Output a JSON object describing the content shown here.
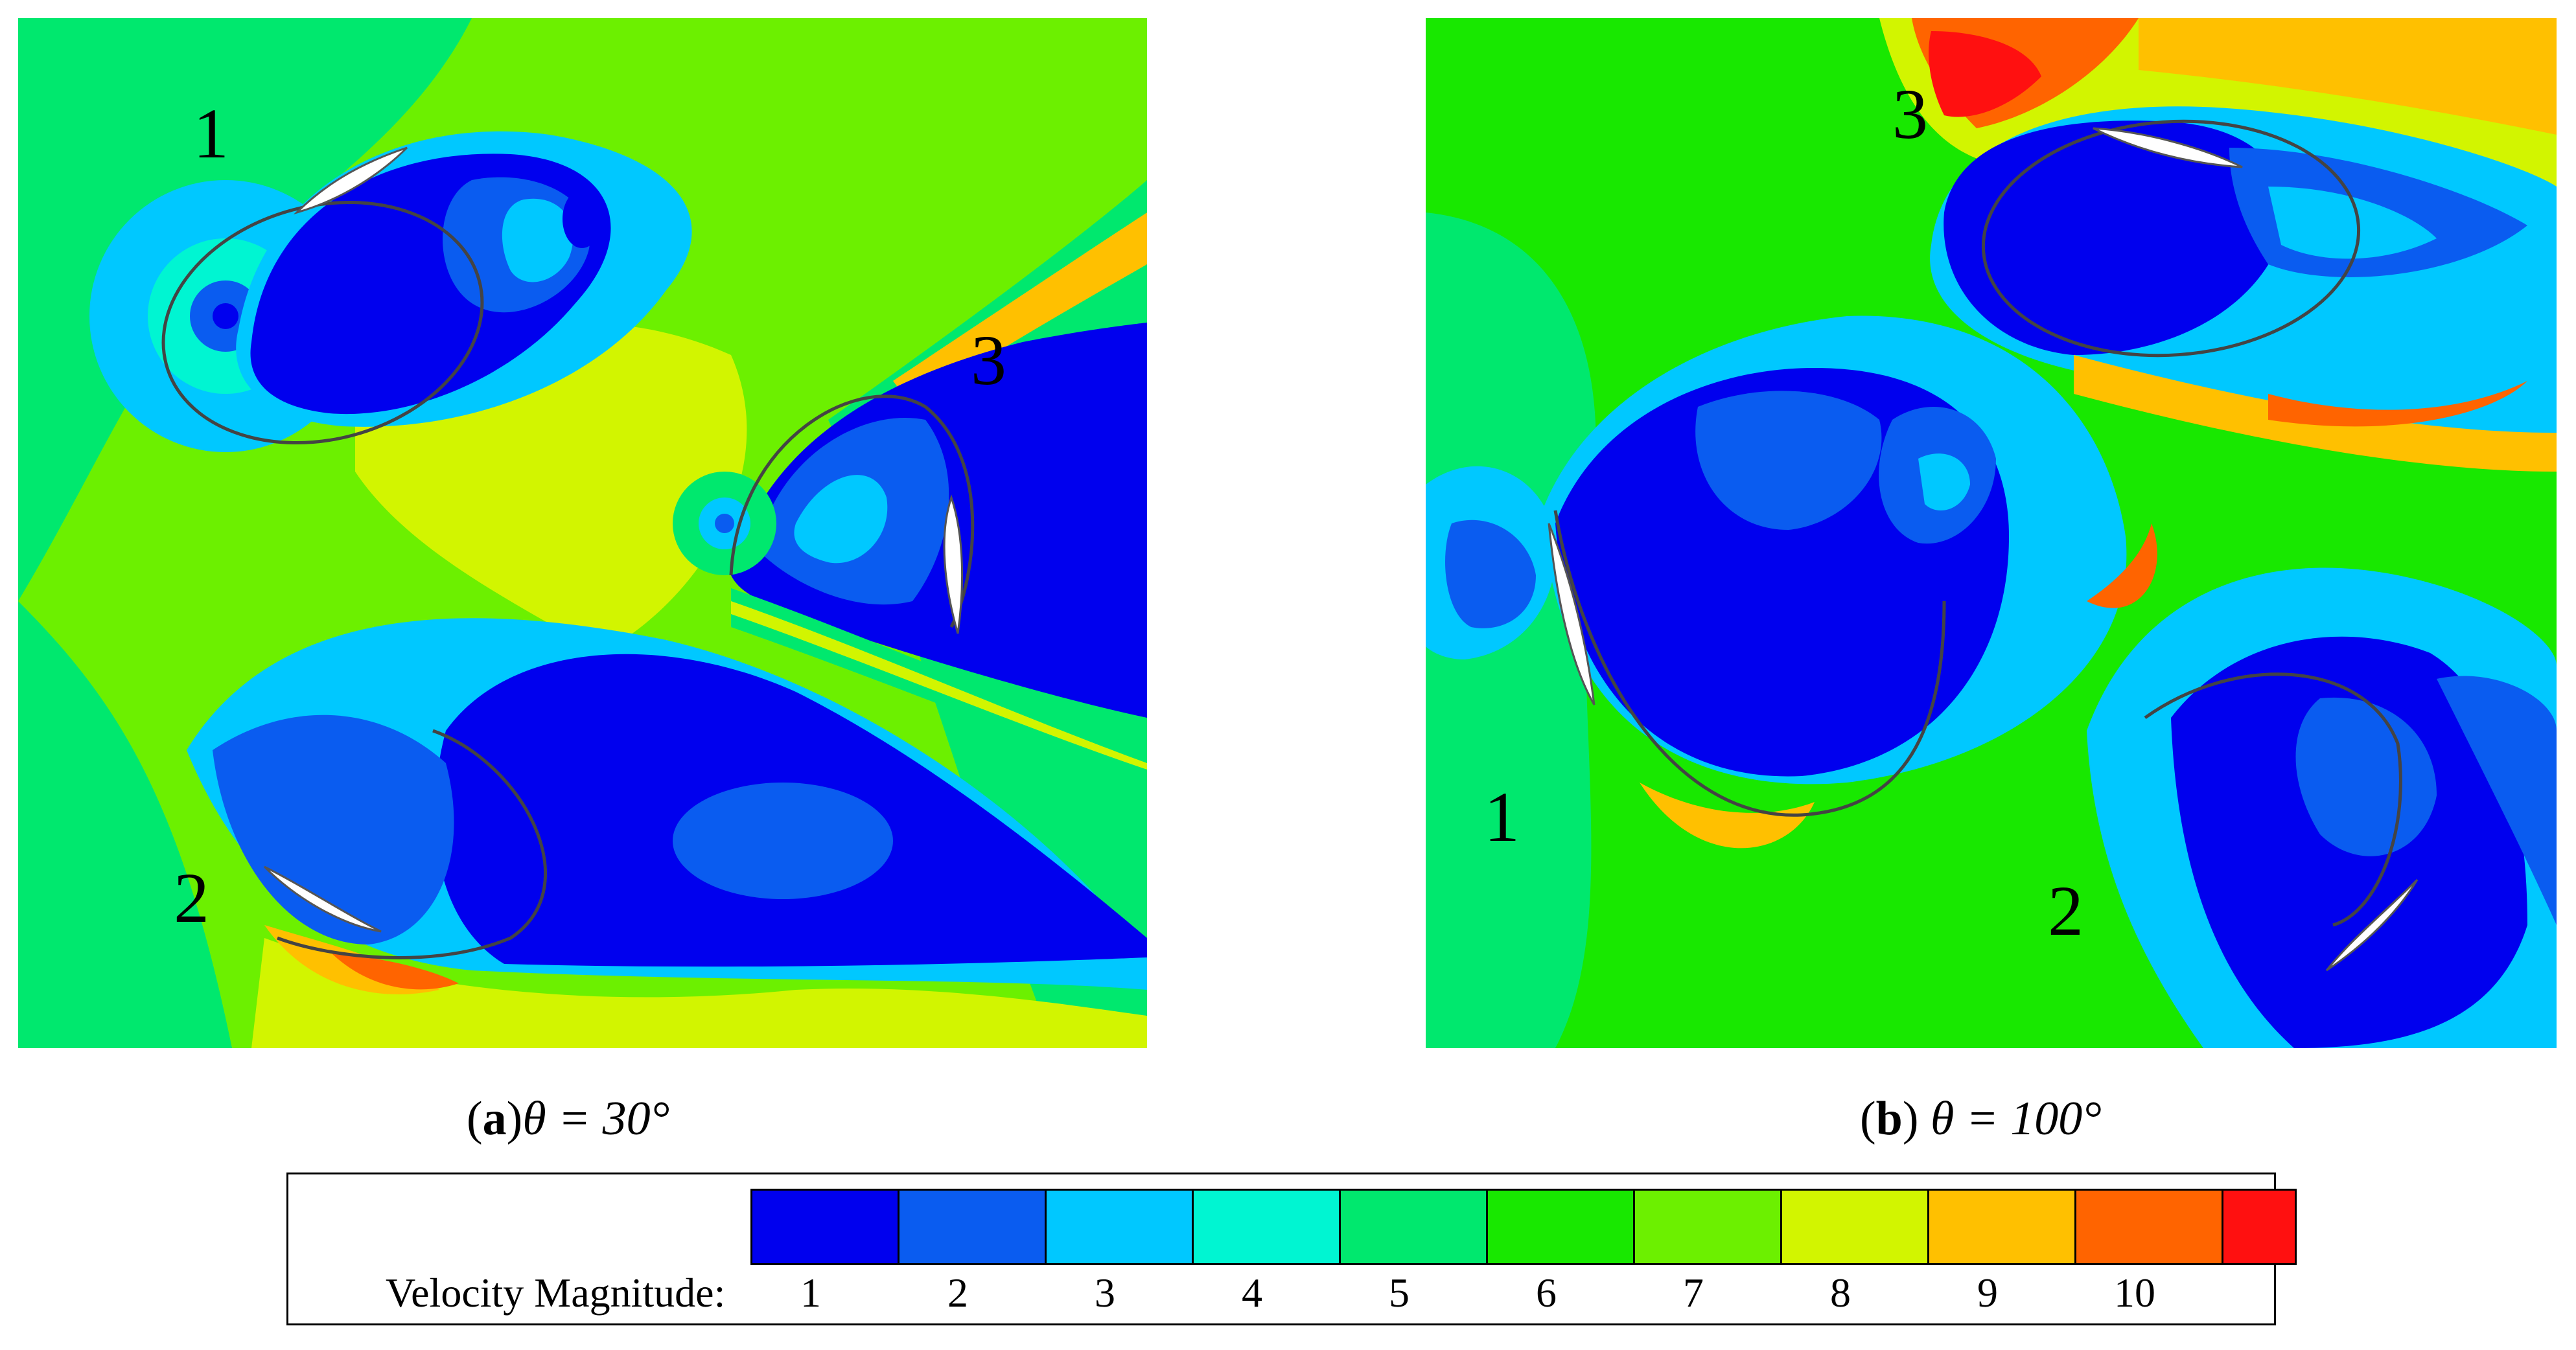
{
  "panels": [
    {
      "id": "a",
      "caption_letter": "a",
      "caption_angle": "θ = 30°",
      "labels": [
        "1",
        "2",
        "3"
      ]
    },
    {
      "id": "b",
      "caption_letter": "b",
      "caption_angle": "θ = 100°",
      "labels": [
        "1",
        "2",
        "3"
      ]
    }
  ],
  "legend": {
    "title": "Velocity Magnitude:",
    "ticks": [
      "1",
      "2",
      "3",
      "4",
      "5",
      "6",
      "7",
      "8",
      "9",
      "10"
    ],
    "colors": [
      "#0000ee",
      "#0a5cf0",
      "#00c8ff",
      "#00f5d2",
      "#00e86e",
      "#18e800",
      "#6cf000",
      "#d2f500",
      "#ffc000",
      "#ff6400",
      "#ff1010"
    ]
  }
}
